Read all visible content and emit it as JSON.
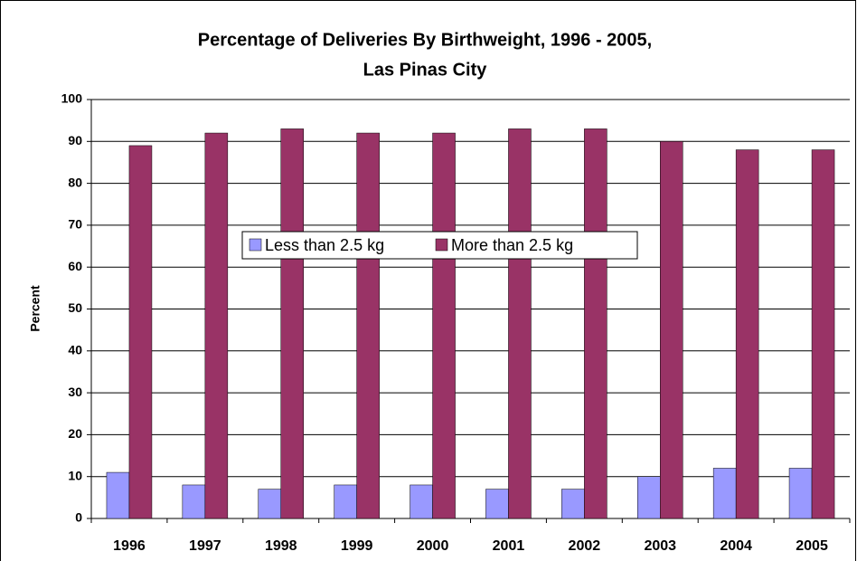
{
  "chart_data": {
    "type": "bar",
    "title": [
      "Percentage of Deliveries By Birthweight, 1996 - 2005,",
      "Las Pinas City"
    ],
    "ylabel": "Percent",
    "categories": [
      "1996",
      "1997",
      "1998",
      "1999",
      "2000",
      "2001",
      "2002",
      "2003",
      "2004",
      "2005"
    ],
    "series": [
      {
        "name": "Less than 2.5 kg",
        "color": "#9999ff",
        "values": [
          11,
          8,
          7,
          8,
          8,
          7,
          7,
          10,
          12,
          12
        ]
      },
      {
        "name": "More than 2.5 kg",
        "color": "#993366",
        "values": [
          89,
          92,
          93,
          92,
          92,
          93,
          93,
          90,
          88,
          88
        ]
      }
    ],
    "ylim": [
      0,
      100
    ],
    "yticks": [
      0,
      10,
      20,
      30,
      40,
      50,
      60,
      70,
      80,
      90,
      100
    ],
    "grid": true
  }
}
